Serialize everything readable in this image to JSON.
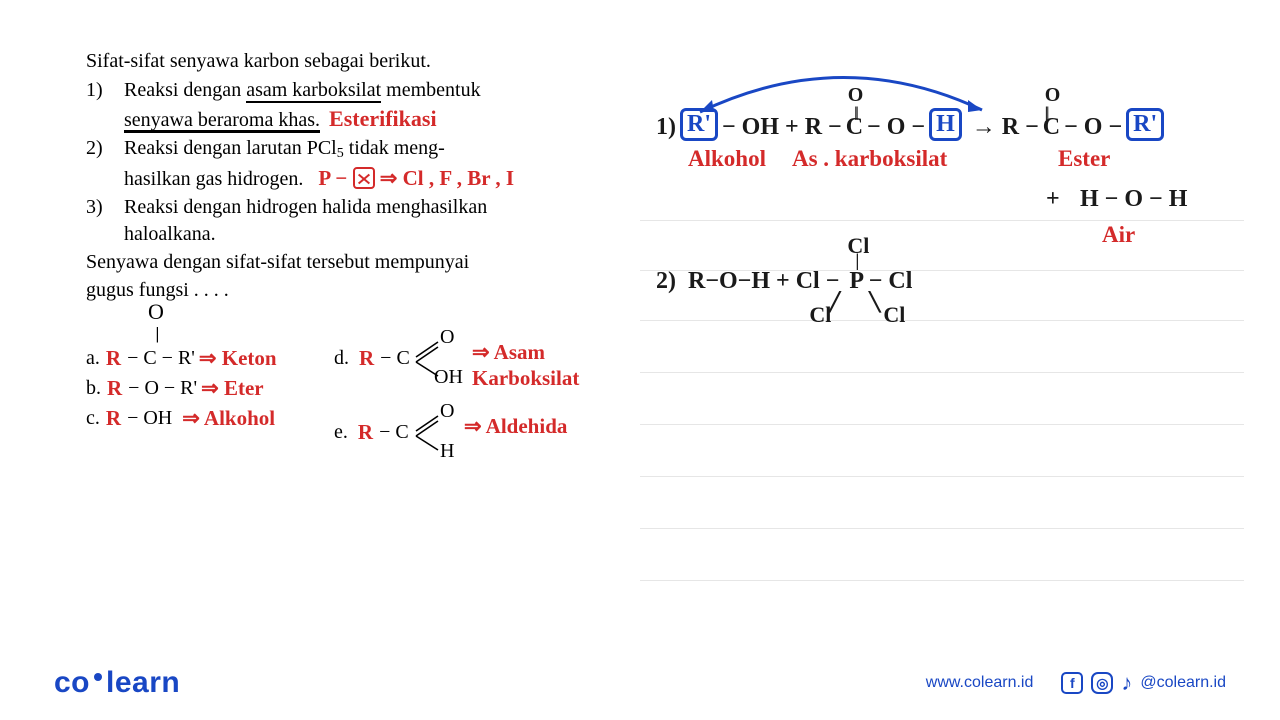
{
  "problem": {
    "intro": "Sifat-sifat senyawa karbon sebagai berikut.",
    "items": [
      {
        "num": "1)",
        "pre": "Reaksi dengan ",
        "u1": "asam karboksilat",
        "mid": " membentuk ",
        "u2": "senyawa beraroma khas.",
        "annot": "Esterifikasi"
      },
      {
        "num": "2)",
        "line1a": "Reaksi dengan larutan PCl",
        "sub5": "5",
        "line1b": " tidak meng-",
        "line2": "hasilkan gas hidrogen.",
        "annot_pre": "P − ",
        "annot_post": " ⇒ Cl , F , Br , I"
      },
      {
        "num": "3)",
        "line1": "Reaksi dengan hidrogen halida menghasilkan",
        "line2": "haloalkana."
      }
    ],
    "prompt1": "Senyawa dengan sifat-sifat tersebut mempunyai",
    "prompt2": "gugus fungsi . . . ."
  },
  "options": {
    "a": {
      "letter": "a.",
      "print": "− C − R'",
      "o_top": "O",
      "o_dbl": "||",
      "hand": "R",
      "ann": "⇒ Keton"
    },
    "b": {
      "letter": "b.",
      "print": "− O − R'",
      "hand": "R",
      "ann": "⇒ Eter"
    },
    "c": {
      "letter": "c.",
      "print": "− OH",
      "hand": "R",
      "ann": "⇒ Alkohol"
    },
    "d": {
      "letter": "d.",
      "print": "− C",
      "hand": "R",
      "o": "O",
      "oh": "OH",
      "ann1": "⇒ Asam",
      "ann2": "Karboksilat"
    },
    "e": {
      "letter": "e.",
      "print": "− C",
      "hand": "R",
      "o": "O",
      "h": "H",
      "ann": "⇒ Aldehida"
    }
  },
  "work": {
    "eq1": {
      "num": "1)",
      "r1": "R'",
      "oh": "− OH  +  R −",
      "c": "C",
      "o": "O",
      "dbl": "||",
      "mid": "− O −",
      "h": "H",
      "arrow": "→  R −",
      "c2": "C",
      "mid2": "− O −",
      "r2": "R'",
      "lbl_alkohol": "Alkohol",
      "lbl_ask": "As . karboksilat",
      "lbl_ester": "Ester",
      "plus": "+",
      "water": "H − O − H",
      "lbl_air": "Air"
    },
    "eq2": {
      "num": "2)",
      "left": "R−O−H  + Cl −",
      "p": "P",
      "cl_top": "Cl",
      "cl_right": "− Cl",
      "cl_bl": "Cl",
      "cl_br": "Cl",
      "bar_top": "|",
      "slash_bl": "╱",
      "slash_br": "╲"
    }
  },
  "footer": {
    "logo_co": "co",
    "logo_learn": "learn",
    "url": "www.colearn.id",
    "handle": "@colearn.id"
  },
  "colors": {
    "red": "#d42a2a",
    "blue": "#1947c4",
    "black": "#1a1a1a"
  }
}
